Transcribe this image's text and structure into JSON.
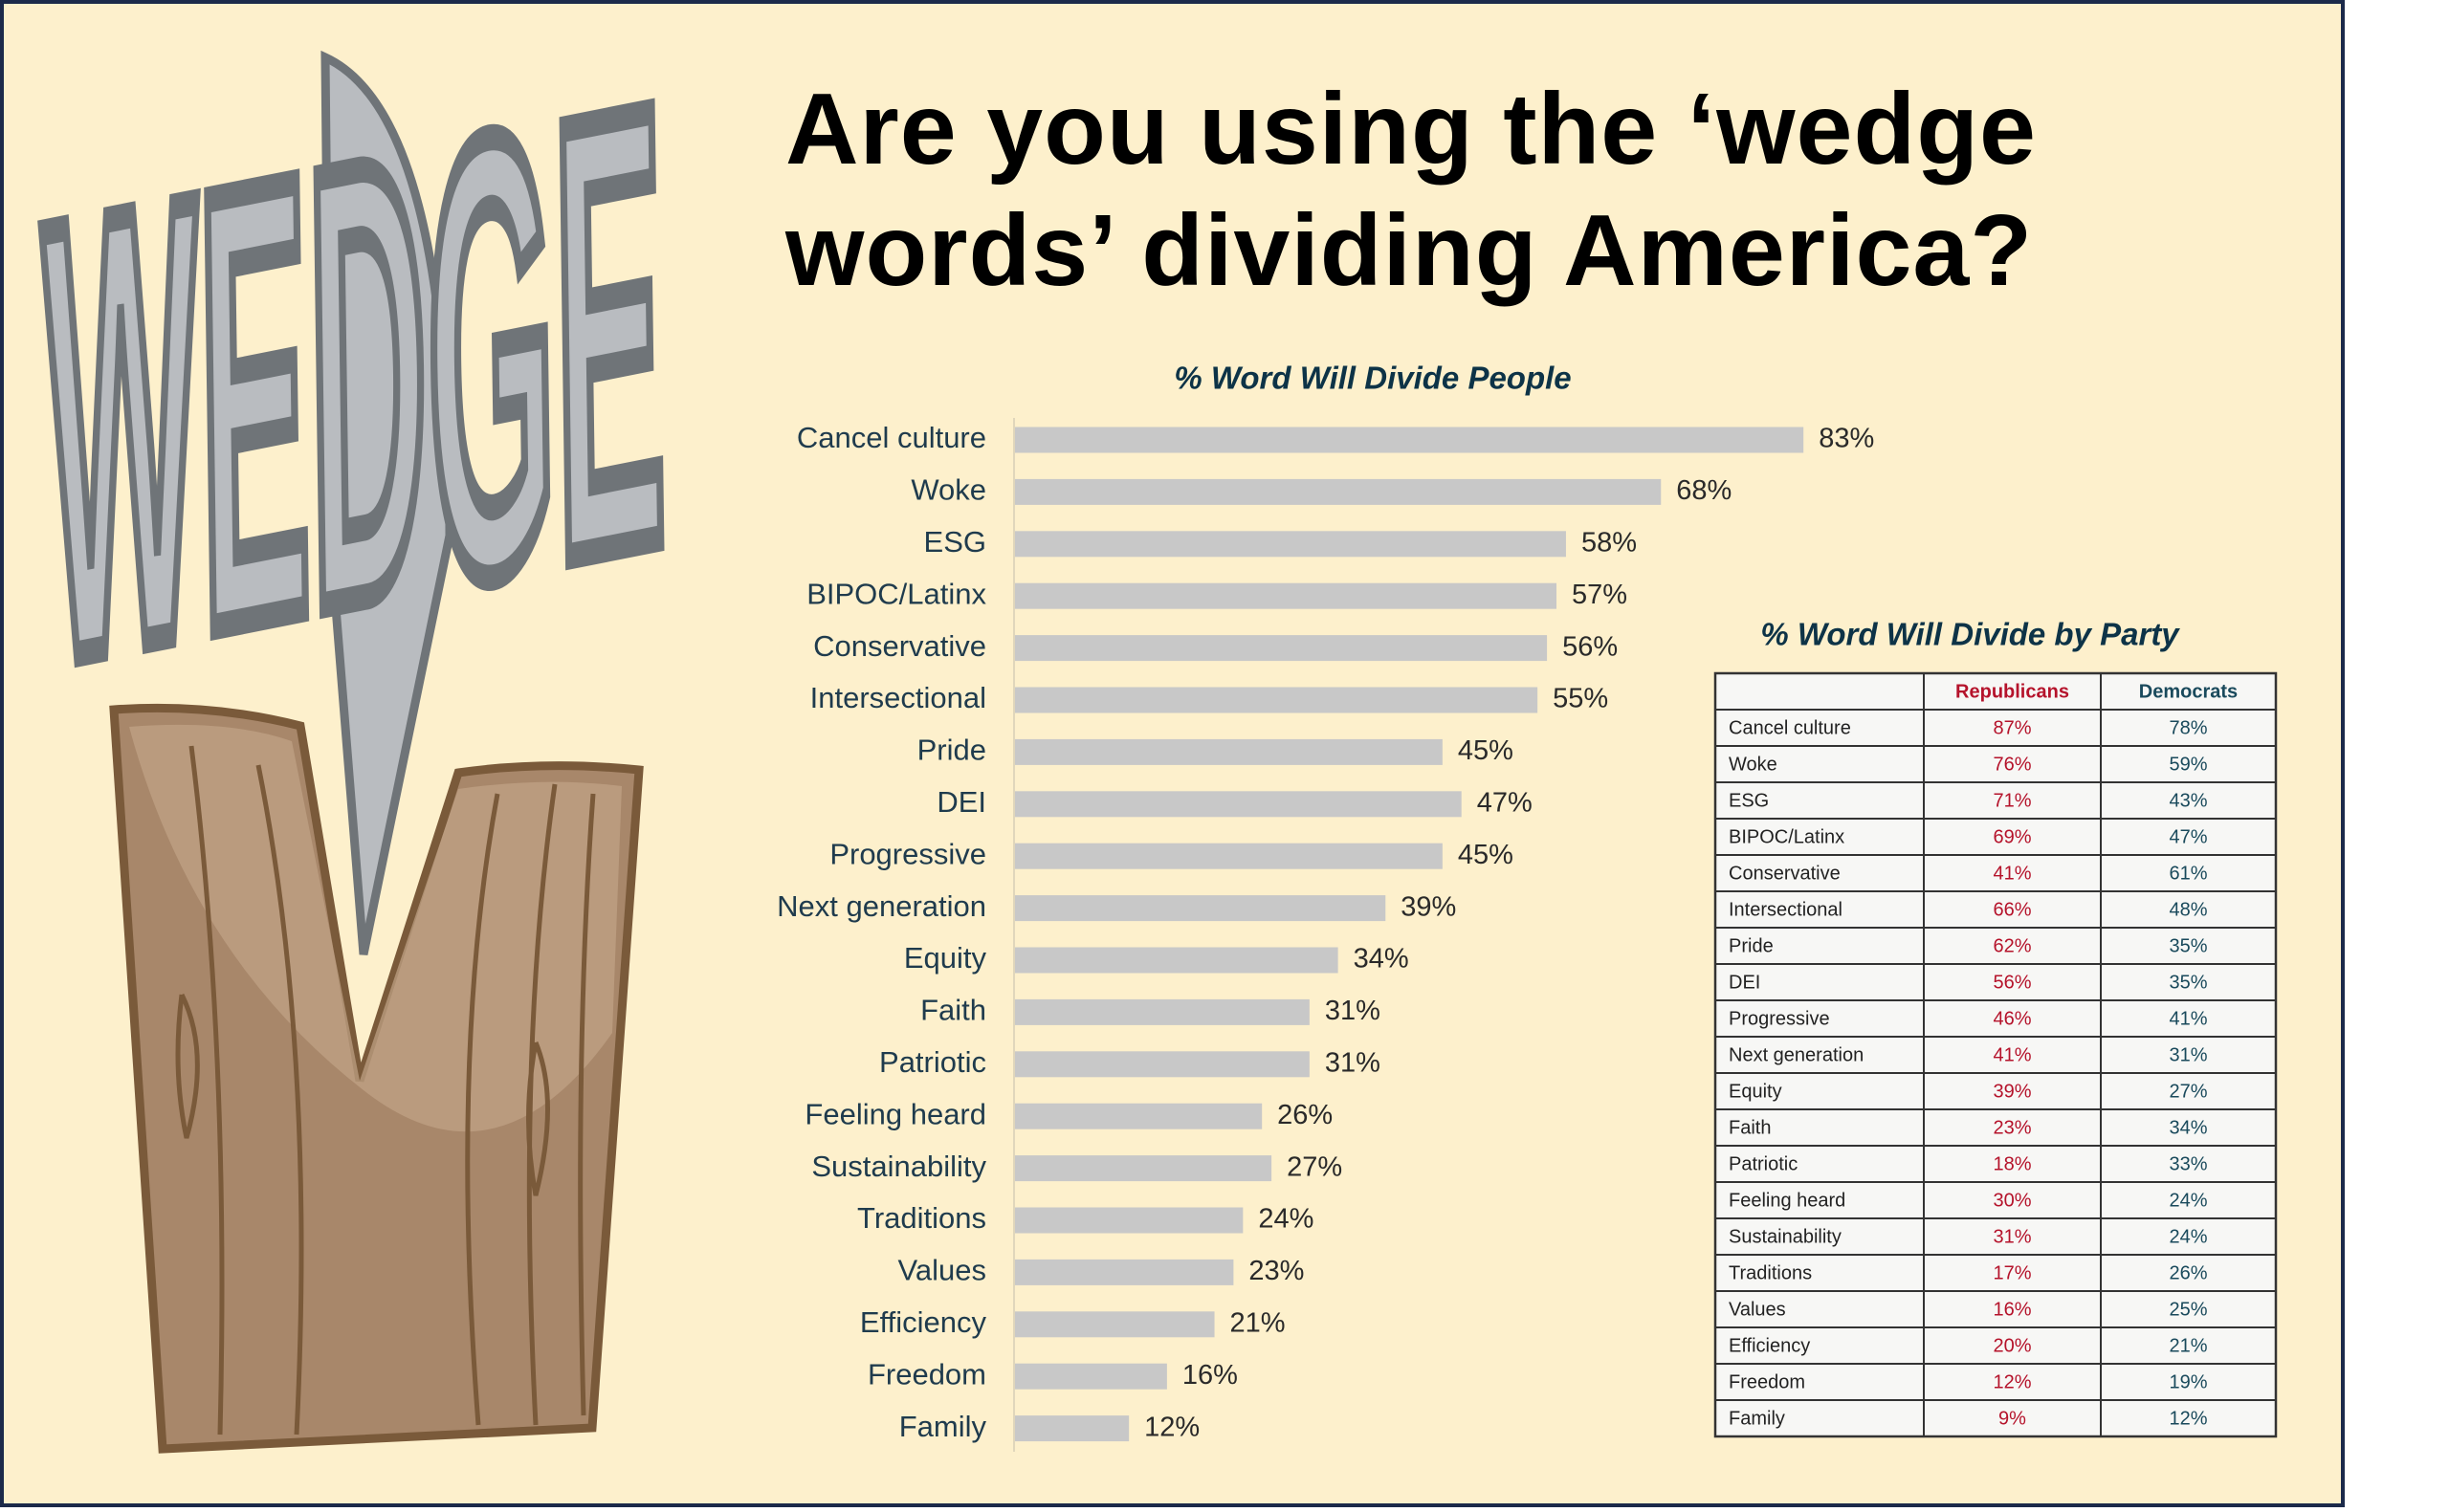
{
  "chart_data": {
    "type": "bar",
    "title": "Are you using the ‘wedge words’ dividing America?",
    "subtitle": "% Word Will Divide People",
    "illustration_text": "WEDGE",
    "categories": [
      "Cancel culture",
      "Woke",
      "ESG",
      "BIPOC/Latinx",
      "Conservative",
      "Intersectional",
      "Pride",
      "DEI",
      "Progressive",
      "Next generation",
      "Equity",
      "Faith",
      "Patriotic",
      "Feeling heard",
      "Sustainability",
      "Traditions",
      "Values",
      "Efficiency",
      "Freedom",
      "Family"
    ],
    "values": [
      83,
      68,
      58,
      57,
      56,
      55,
      45,
      47,
      45,
      39,
      34,
      31,
      31,
      26,
      27,
      24,
      23,
      21,
      16,
      12
    ],
    "value_labels": [
      "83%",
      "68%",
      "58%",
      "57%",
      "56%",
      "55%",
      "45%",
      "47%",
      "45%",
      "39%",
      "34%",
      "31%",
      "31%",
      "26%",
      "27%",
      "24%",
      "23%",
      "21%",
      "16%",
      "12%"
    ],
    "color": "#c8c8c8"
  },
  "table": {
    "title": "% Word Will Divide by Party",
    "header": [
      "Republicans",
      "Democrats"
    ],
    "rows": [
      [
        "Cancel culture",
        "87%",
        "78%"
      ],
      [
        "Woke",
        "76%",
        "59%"
      ],
      [
        "ESG",
        "71%",
        "43%"
      ],
      [
        "BIPOC/Latinx",
        "69%",
        "47%"
      ],
      [
        "Conservative",
        "41%",
        "61%"
      ],
      [
        "Intersectional",
        "66%",
        "48%"
      ],
      [
        "Pride",
        "62%",
        "35%"
      ],
      [
        "DEI",
        "56%",
        "35%"
      ],
      [
        "Progressive",
        "46%",
        "41%"
      ],
      [
        "Next generation",
        "41%",
        "31%"
      ],
      [
        "Equity",
        "39%",
        "27%"
      ],
      [
        "Faith",
        "23%",
        "34%"
      ],
      [
        "Patriotic",
        "18%",
        "33%"
      ],
      [
        "Feeling heard",
        "30%",
        "24%"
      ],
      [
        "Sustainability",
        "31%",
        "24%"
      ],
      [
        "Traditions",
        "17%",
        "26%"
      ],
      [
        "Values",
        "16%",
        "25%"
      ],
      [
        "Efficiency",
        "20%",
        "21%"
      ],
      [
        "Freedom",
        "12%",
        "19%"
      ],
      [
        "Family",
        "9%",
        "12%"
      ]
    ]
  }
}
